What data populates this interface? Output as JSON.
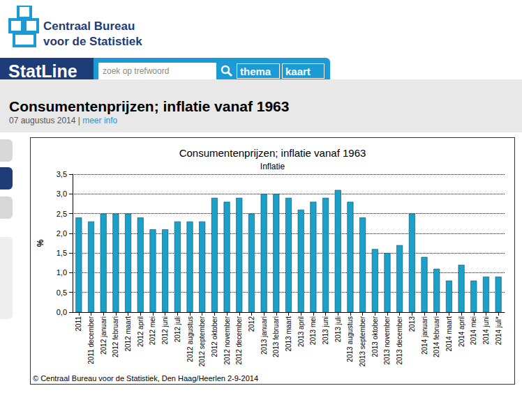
{
  "page": {
    "logo_text": [
      "Centraal Bureau",
      "voor de Statistiek"
    ],
    "brand": "StatLine",
    "search_placeholder": "zoek op trefwoord",
    "buttons": [
      "thema",
      "kaart"
    ],
    "title": "Consumentenprijzen; inflatie vanaf 1963",
    "date": "07 augustus 2014",
    "separator": "|",
    "more_info": "meer info"
  },
  "chart_data": {
    "type": "bar",
    "title": "Consumentenprijzen; inflatie vanaf 1963",
    "subtitle": "Inflatie",
    "y_label": "%",
    "categories": [
      "2011",
      "2011 december",
      "2012 januari",
      "2012 februari",
      "2012 maart",
      "2012 april",
      "2012 mei",
      "2012 juni",
      "2012 juli",
      "2012 augustus",
      "2012 september",
      "2012 oktober",
      "2012 november",
      "2012 december",
      "2012",
      "2013 januari",
      "2013 februari",
      "2013 maart",
      "2013 april",
      "2013 mei",
      "2013 juni",
      "2013 juli",
      "2013 augustus",
      "2013 september",
      "2013 oktober",
      "2013 november",
      "2013 december",
      "2013",
      "2014 januari",
      "2014 februari",
      "2014 maart",
      "2014 april",
      "2014 mei",
      "2014 juni",
      "2014 juli*"
    ],
    "values": [
      2.4,
      2.3,
      2.5,
      2.5,
      2.5,
      2.4,
      2.1,
      2.1,
      2.3,
      2.3,
      2.3,
      2.9,
      2.8,
      2.9,
      2.5,
      3.0,
      3.0,
      2.9,
      2.6,
      2.8,
      2.9,
      3.1,
      2.8,
      2.4,
      1.6,
      1.5,
      1.7,
      2.5,
      1.4,
      1.1,
      0.8,
      1.2,
      0.8,
      0.9,
      0.9
    ],
    "color": "#1ba0c9",
    "ylim": [
      0,
      3.5
    ],
    "yticks": [
      {
        "value": 0,
        "label": "0,0"
      },
      {
        "value": 0.5,
        "label": "0,5"
      },
      {
        "value": 1,
        "label": "1,0"
      },
      {
        "value": 1.5,
        "label": "1,5"
      },
      {
        "value": 2,
        "label": "2,0"
      },
      {
        "value": 2.5,
        "label": "2,5"
      },
      {
        "value": 3,
        "label": "3,0"
      },
      {
        "value": 3.5,
        "label": "3,5"
      }
    ],
    "grid": true,
    "source": "© Centraal Bureau voor de Statistiek, Den Haag/Heerlen 2-9-2014"
  }
}
